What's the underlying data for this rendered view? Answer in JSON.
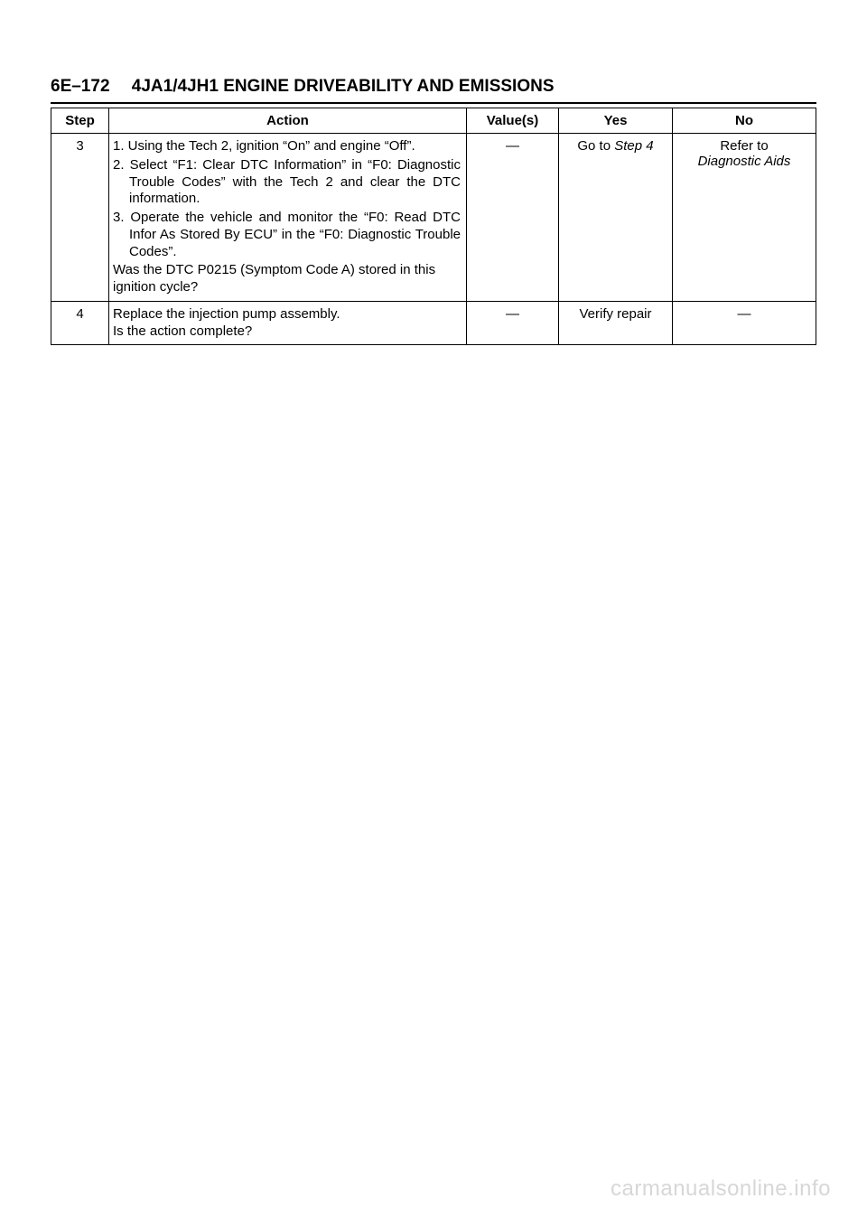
{
  "page_header": "6E–172  4JA1/4JH1 ENGINE DRIVEABILITY AND EMISSIONS",
  "table": {
    "headers": {
      "step": "Step",
      "action": "Action",
      "values": "Value(s)",
      "yes": "Yes",
      "no": "No"
    },
    "rows": [
      {
        "step": "3",
        "action_items": [
          "1. Using the Tech 2, ignition “On” and engine “Off”.",
          "2. Select “F1: Clear DTC Information” in “F0: Diagnostic Trouble Codes” with the Tech 2 and clear the DTC information.",
          "3. Operate the vehicle and monitor the “F0: Read DTC Infor As Stored By ECU” in the “F0: Diagnostic Trouble Codes”."
        ],
        "action_after": "Was the DTC P0215 (Symptom Code A) stored in this ignition cycle?",
        "values": "—",
        "yes_prefix": "Go to ",
        "yes_italic": "Step 4",
        "no_prefix": "Refer to",
        "no_italic": "Diagnostic Aids"
      },
      {
        "step": "4",
        "action_lines": [
          "Replace the injection pump assembly.",
          "Is the action complete?"
        ],
        "values": "—",
        "yes": "Verify repair",
        "no": "—"
      }
    ]
  },
  "watermark": "carmanualsonline.info"
}
